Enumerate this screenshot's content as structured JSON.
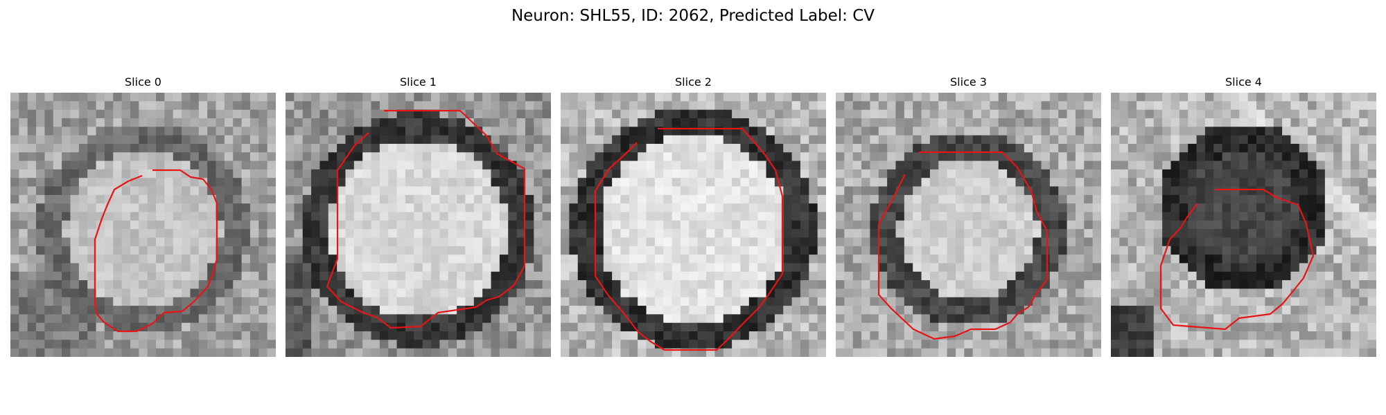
{
  "figure": {
    "title": "Neuron: SHL55, ID: 2062, Predicted Label: CV"
  },
  "panels": [
    {
      "label": "Slice 0",
      "ring": 0.55,
      "ringDark": 105,
      "innerBright": 195,
      "outerBright": 160,
      "bgMix": 0
    },
    {
      "label": "Slice 1",
      "ring": 0.62,
      "ringDark": 55,
      "innerBright": 215,
      "outerBright": 150,
      "bgMix": 1
    },
    {
      "label": "Slice 2",
      "ring": 0.65,
      "ringDark": 50,
      "innerBright": 225,
      "outerBright": 180,
      "bgMix": 2
    },
    {
      "label": "Slice 3",
      "ring": 0.5,
      "ringDark": 70,
      "innerBright": 205,
      "outerBright": 170,
      "bgMix": 3
    },
    {
      "label": "Slice 4",
      "ring": 0.42,
      "ringDark": 45,
      "innerBright": 70,
      "outerBright": 180,
      "bgMix": 4
    }
  ],
  "contour_color": "#e81416",
  "colormap": "gray"
}
